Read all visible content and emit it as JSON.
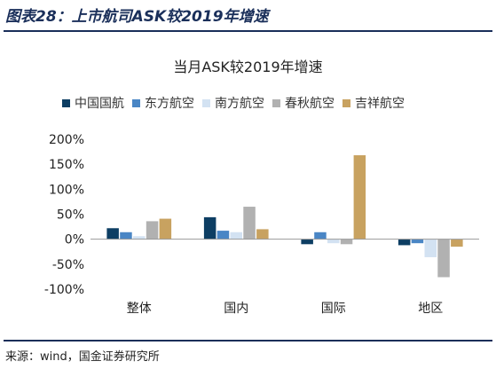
{
  "figure_title": "图表28：上市航司ASK较2019年增速",
  "source_note": "来源：wind，国金证券研究所",
  "chart_data": {
    "type": "bar",
    "title": "当月ASK较2019年增速",
    "xlabel": "",
    "ylabel": "",
    "categories": [
      "整体",
      "国内",
      "国际",
      "地区"
    ],
    "ylim": [
      -100,
      200
    ],
    "yticks": [
      -100,
      -50,
      0,
      50,
      100,
      150,
      200
    ],
    "ytick_labels": [
      "-100%",
      "-50%",
      "0%",
      "50%",
      "100%",
      "150%",
      "200%"
    ],
    "grid": false,
    "legend_position": "top",
    "series": [
      {
        "name": "中国国航",
        "color": "#0d3e63",
        "values": [
          22,
          44,
          -10,
          -12
        ]
      },
      {
        "name": "东方航空",
        "color": "#4a86c5",
        "values": [
          14,
          17,
          14,
          -8
        ]
      },
      {
        "name": "南方航空",
        "color": "#d3e2f2",
        "values": [
          6,
          14,
          -8,
          -36
        ]
      },
      {
        "name": "春秋航空",
        "color": "#b1b1b1",
        "values": [
          36,
          65,
          -10,
          -76
        ]
      },
      {
        "name": "吉祥航空",
        "color": "#c8a260",
        "values": [
          41,
          20,
          168,
          -15
        ]
      }
    ]
  }
}
